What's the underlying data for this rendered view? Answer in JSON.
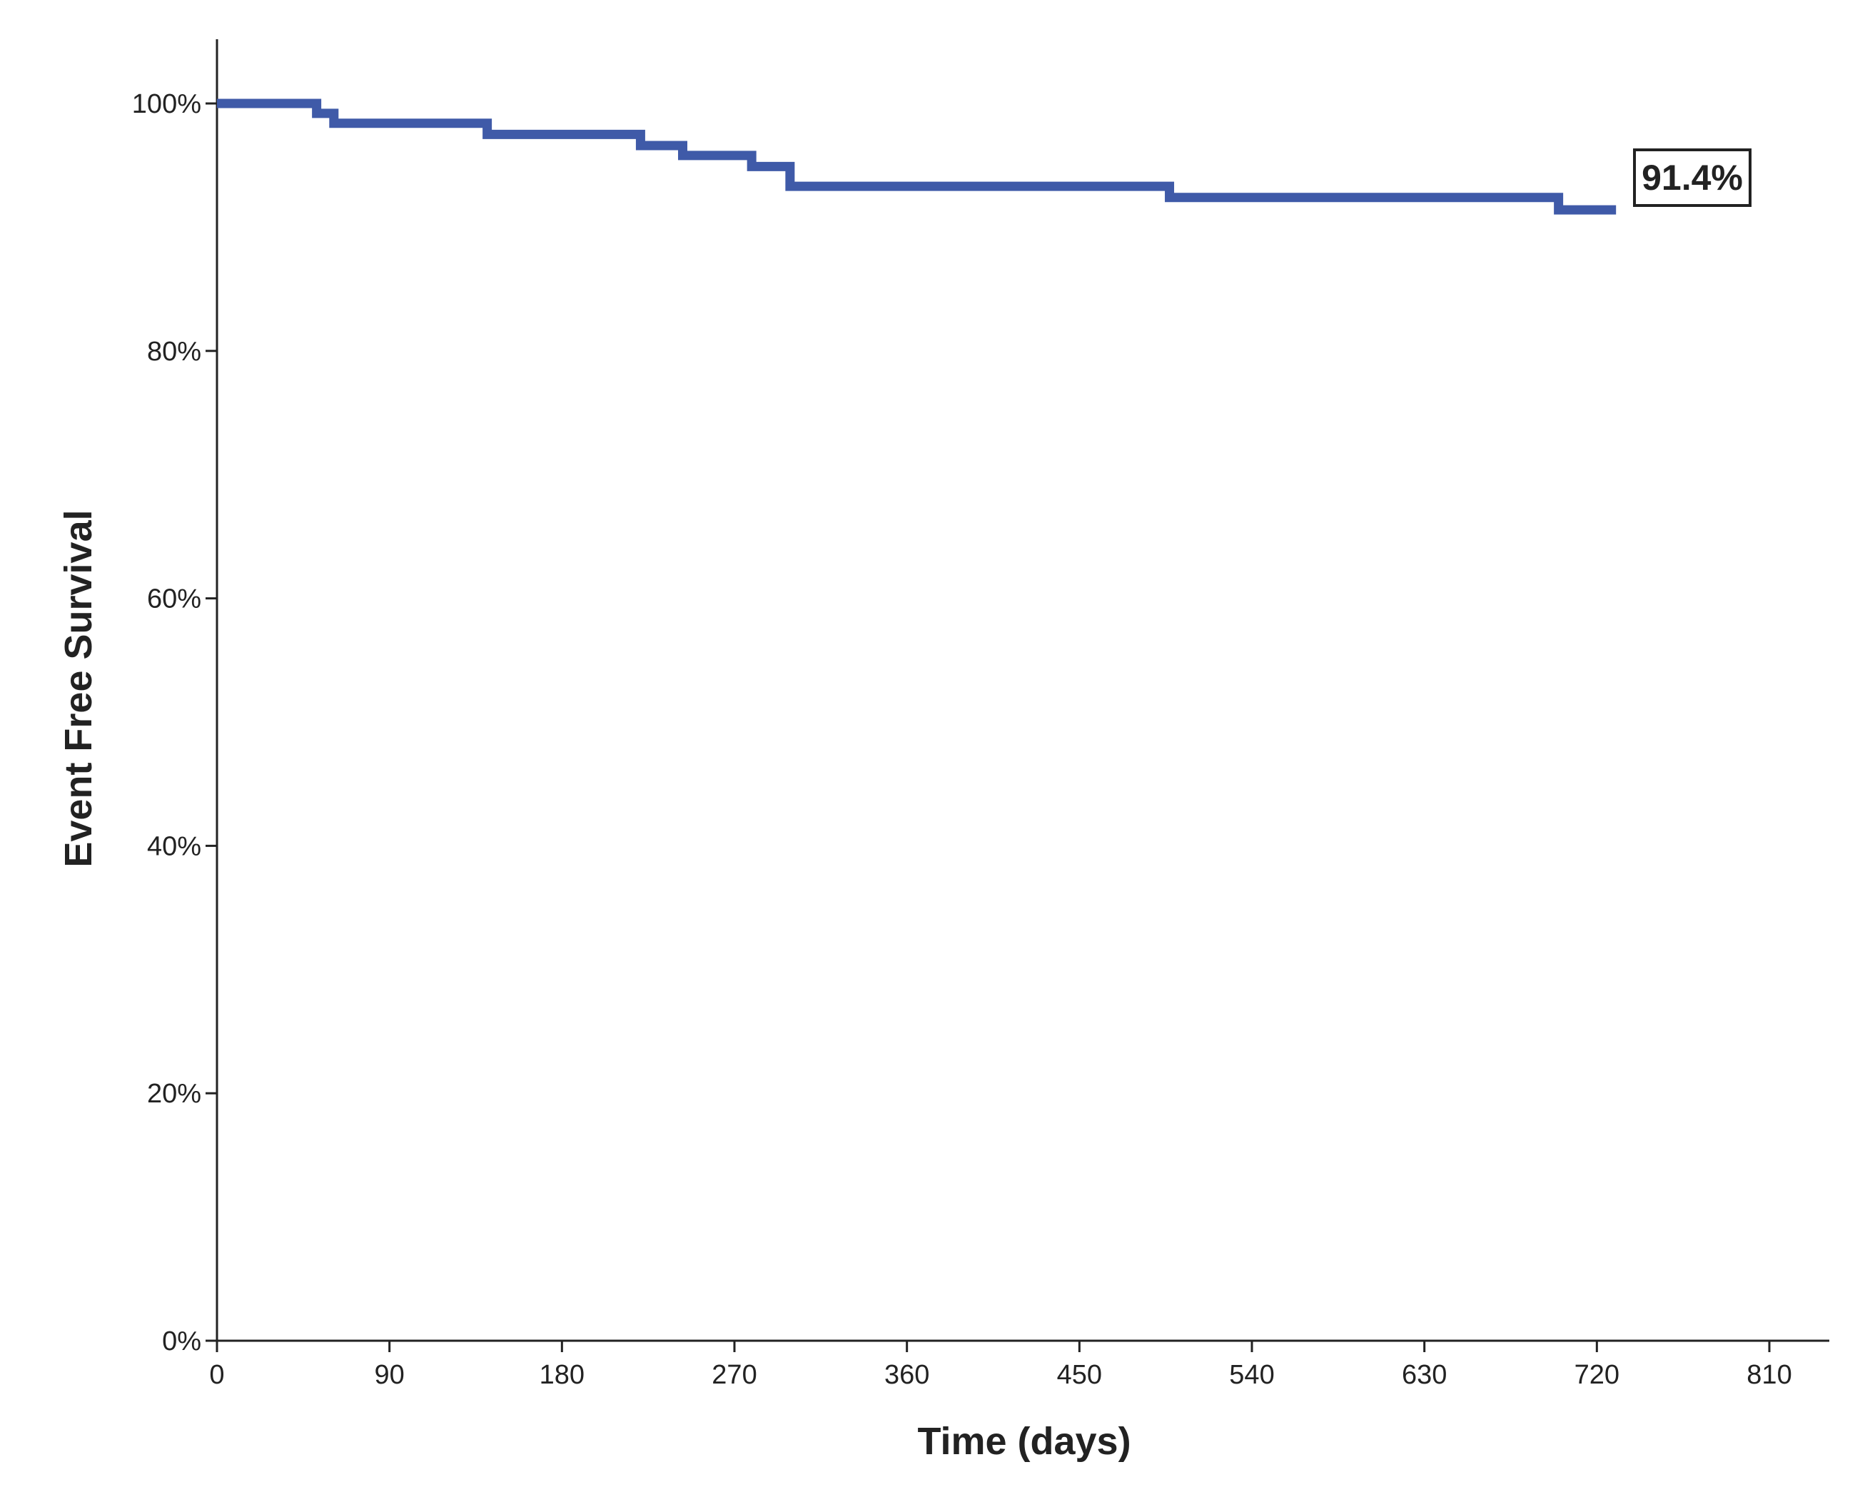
{
  "chart_data": {
    "type": "line",
    "subtype": "kaplan-meier step",
    "title": "",
    "xlabel": "Time (days)",
    "ylabel": "Event Free Survival",
    "xlim": [
      0,
      840
    ],
    "ylim": [
      0,
      100
    ],
    "xticks": [
      0,
      90,
      180,
      270,
      360,
      450,
      540,
      630,
      720,
      810
    ],
    "yticks": [
      0,
      20,
      40,
      60,
      80,
      100
    ],
    "ytick_labels": [
      "0%",
      "20%",
      "40%",
      "60%",
      "80%",
      "100%"
    ],
    "grid": false,
    "series": [
      {
        "name": "Event Free Survival",
        "color": "#3F5AA8",
        "steps": [
          {
            "x": 0,
            "y": 100
          },
          {
            "x": 52,
            "y": 99.2
          },
          {
            "x": 61,
            "y": 98.4
          },
          {
            "x": 141,
            "y": 97.5
          },
          {
            "x": 221,
            "y": 96.6
          },
          {
            "x": 243,
            "y": 95.8
          },
          {
            "x": 279,
            "y": 94.9
          },
          {
            "x": 299,
            "y": 93.3
          },
          {
            "x": 497,
            "y": 92.4
          },
          {
            "x": 700,
            "y": 91.4
          }
        ],
        "end_x": 730
      }
    ],
    "annotations": [
      {
        "text": "91.4%",
        "x": 730,
        "y": 91.4
      }
    ]
  }
}
